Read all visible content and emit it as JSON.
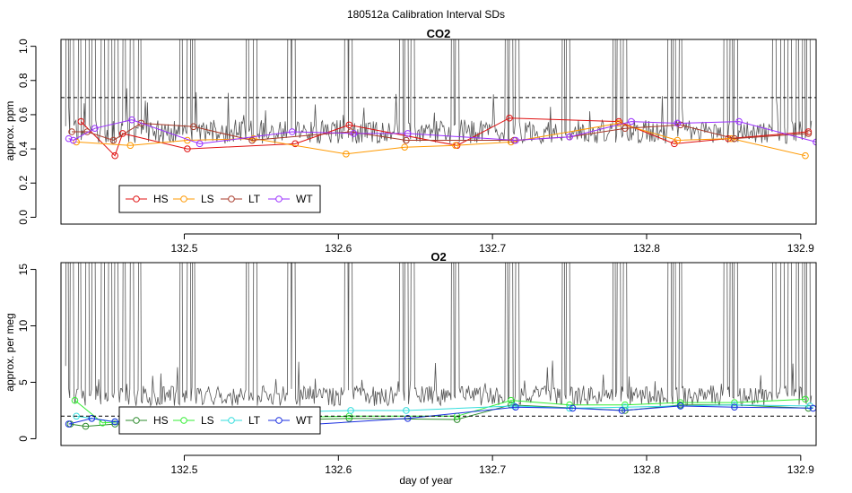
{
  "figure_title": "180512a   Calibration Interval SDs",
  "xlabel": "day of year",
  "reference_line_label": "dashed threshold",
  "chart_data": [
    {
      "type": "line",
      "panel_title": "CO2",
      "ylabel": "approx. ppm",
      "xlim": [
        132.42,
        132.91
      ],
      "ylim": [
        0,
        1.0
      ],
      "yticks": [
        "0.0",
        "0.2",
        "0.4",
        "0.6",
        "0.8",
        "1.0"
      ],
      "yticks_values": [
        0,
        0.2,
        0.4,
        0.6,
        0.8,
        1.0
      ],
      "xticks": [
        "132.5",
        "132.6",
        "132.7",
        "132.8",
        "132.9"
      ],
      "xticks_values": [
        132.5,
        132.6,
        132.7,
        132.8,
        132.9
      ],
      "threshold": 0.7,
      "trace": {
        "name": "continuous SD",
        "color": "#555555",
        "base": 0.5,
        "noise": 0.07
      },
      "spikes": [
        132.424,
        132.427,
        132.432,
        132.437,
        132.441,
        132.447,
        132.452,
        132.456,
        132.461,
        132.466,
        132.471,
        132.498,
        132.503,
        132.506,
        132.541,
        132.546,
        132.568,
        132.571,
        132.605,
        132.608,
        132.641,
        132.644,
        132.648,
        132.674,
        132.677,
        132.709,
        132.712,
        132.716,
        132.746,
        132.749,
        132.779,
        132.782,
        132.786,
        132.815,
        132.818,
        132.822,
        132.851,
        132.855,
        132.858,
        132.883,
        132.888,
        132.893,
        132.898,
        132.902,
        132.905
      ],
      "series": [
        {
          "name": "HS",
          "color": "#e01010",
          "x": [
            132.433,
            132.455,
            132.46,
            132.502,
            132.572,
            132.607,
            132.677,
            132.711,
            132.782,
            132.818,
            132.853,
            132.905
          ],
          "y": [
            0.56,
            0.36,
            0.49,
            0.4,
            0.43,
            0.54,
            0.42,
            0.58,
            0.56,
            0.43,
            0.46,
            0.5
          ]
        },
        {
          "name": "LS",
          "color": "#ff9900",
          "x": [
            132.43,
            132.465,
            132.502,
            132.545,
            132.605,
            132.643,
            132.676,
            132.712,
            132.782,
            132.82,
            132.855,
            132.903
          ],
          "y": [
            0.44,
            0.42,
            0.45,
            0.46,
            0.37,
            0.41,
            0.42,
            0.44,
            0.55,
            0.45,
            0.46,
            0.36
          ]
        },
        {
          "name": "LT",
          "color": "#a83a2a",
          "x": [
            132.427,
            132.437,
            132.454,
            132.472,
            132.506,
            132.544,
            132.608,
            132.644,
            132.714,
            132.75,
            132.786,
            132.822,
            132.857,
            132.905
          ],
          "y": [
            0.5,
            0.5,
            0.45,
            0.55,
            0.53,
            0.45,
            0.5,
            0.45,
            0.45,
            0.47,
            0.52,
            0.54,
            0.46,
            0.49
          ]
        },
        {
          "name": "WT",
          "color": "#9b30ff",
          "x": [
            132.425,
            132.428,
            132.442,
            132.466,
            132.51,
            132.57,
            132.61,
            132.645,
            132.715,
            132.75,
            132.79,
            132.82,
            132.86,
            132.91
          ],
          "y": [
            0.46,
            0.45,
            0.52,
            0.57,
            0.43,
            0.5,
            0.49,
            0.49,
            0.45,
            0.47,
            0.56,
            0.55,
            0.56,
            0.44
          ]
        }
      ],
      "legend": [
        "HS",
        "LS",
        "LT",
        "WT"
      ],
      "legend_position": "bottom-left"
    },
    {
      "type": "line",
      "panel_title": "O2",
      "ylabel": "approx. per meg",
      "xlim": [
        132.42,
        132.91
      ],
      "ylim": [
        0,
        15
      ],
      "yticks": [
        "0",
        "5",
        "10",
        "15"
      ],
      "yticks_values": [
        0,
        5,
        10,
        15
      ],
      "xticks": [
        "132.5",
        "132.6",
        "132.7",
        "132.8",
        "132.9"
      ],
      "xticks_values": [
        132.5,
        132.6,
        132.7,
        132.8,
        132.9
      ],
      "threshold": 2.0,
      "trace": {
        "name": "continuous SD",
        "color": "#555555",
        "base": 3.8,
        "noise": 0.9
      },
      "spikes": [
        132.424,
        132.427,
        132.432,
        132.437,
        132.441,
        132.447,
        132.452,
        132.456,
        132.461,
        132.466,
        132.471,
        132.498,
        132.503,
        132.506,
        132.541,
        132.546,
        132.568,
        132.571,
        132.605,
        132.608,
        132.641,
        132.644,
        132.648,
        132.674,
        132.677,
        132.709,
        132.712,
        132.716,
        132.746,
        132.749,
        132.779,
        132.782,
        132.786,
        132.815,
        132.818,
        132.822,
        132.851,
        132.855,
        132.858,
        132.883,
        132.888,
        132.893,
        132.898,
        132.902,
        132.905
      ],
      "series": [
        {
          "name": "HS",
          "color": "#2e8b2e",
          "x": [
            132.426,
            132.436,
            132.455,
            132.607,
            132.677,
            132.712,
            132.786,
            132.822,
            132.857,
            132.905
          ],
          "y": [
            1.3,
            1.1,
            1.3,
            1.8,
            1.7,
            3.0,
            2.5,
            3.0,
            3.0,
            2.7
          ]
        },
        {
          "name": "LS",
          "color": "#33ee33",
          "x": [
            132.429,
            132.447,
            132.46,
            132.502,
            132.607,
            132.677,
            132.712,
            132.75,
            132.786,
            132.822,
            132.857,
            132.903
          ],
          "y": [
            3.4,
            1.4,
            1.5,
            1.7,
            2.0,
            2.0,
            3.4,
            3.0,
            3.0,
            3.2,
            3.2,
            3.5
          ]
        },
        {
          "name": "LT",
          "color": "#33dddd",
          "x": [
            132.43,
            132.44,
            132.455,
            132.51,
            132.608,
            132.644,
            132.714,
            132.75,
            132.786,
            132.822,
            132.857,
            132.906
          ],
          "y": [
            2.0,
            1.8,
            1.5,
            2.2,
            2.5,
            2.5,
            2.9,
            2.7,
            2.8,
            2.9,
            3.0,
            2.9
          ]
        },
        {
          "name": "WT",
          "color": "#1a2ee0",
          "x": [
            132.425,
            132.44,
            132.455,
            132.575,
            132.645,
            132.715,
            132.752,
            132.784,
            132.822,
            132.857,
            132.908
          ],
          "y": [
            1.3,
            1.8,
            1.5,
            1.2,
            1.8,
            2.8,
            2.7,
            2.5,
            2.9,
            2.8,
            2.7
          ]
        }
      ],
      "legend": [
        "HS",
        "LS",
        "LT",
        "WT"
      ],
      "legend_position": "bottom-left"
    }
  ]
}
